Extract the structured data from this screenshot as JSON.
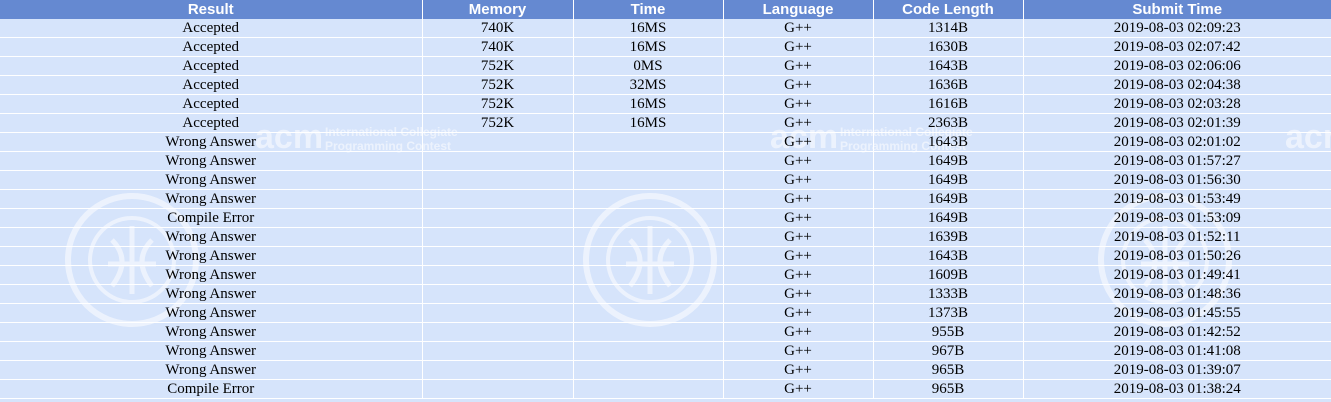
{
  "headers": [
    "Result",
    "Memory",
    "Time",
    "Language",
    "Code Length",
    "Submit Time"
  ],
  "colors": {
    "header_bg": "#6589d1",
    "row_bg": "#d6e4fb",
    "accepted": "#0000ee",
    "wrong_answer": "#ff0000",
    "compile_error": "#007f00",
    "language_link": "#0000ee"
  },
  "watermark": {
    "acm_text": "acm",
    "contest_line1": "International Collegiate",
    "contest_line2": "Programming Contest"
  },
  "rows": [
    {
      "result": "Accepted",
      "memory": "740K",
      "time": "16MS",
      "language": "G++",
      "code_length": "1314B",
      "submit_time": "2019-08-03 02:09:23"
    },
    {
      "result": "Accepted",
      "memory": "740K",
      "time": "16MS",
      "language": "G++",
      "code_length": "1630B",
      "submit_time": "2019-08-03 02:07:42"
    },
    {
      "result": "Accepted",
      "memory": "752K",
      "time": "0MS",
      "language": "G++",
      "code_length": "1643B",
      "submit_time": "2019-08-03 02:06:06"
    },
    {
      "result": "Accepted",
      "memory": "752K",
      "time": "32MS",
      "language": "G++",
      "code_length": "1636B",
      "submit_time": "2019-08-03 02:04:38"
    },
    {
      "result": "Accepted",
      "memory": "752K",
      "time": "16MS",
      "language": "G++",
      "code_length": "1616B",
      "submit_time": "2019-08-03 02:03:28"
    },
    {
      "result": "Accepted",
      "memory": "752K",
      "time": "16MS",
      "language": "G++",
      "code_length": "2363B",
      "submit_time": "2019-08-03 02:01:39"
    },
    {
      "result": "Wrong Answer",
      "memory": "",
      "time": "",
      "language": "G++",
      "code_length": "1643B",
      "submit_time": "2019-08-03 02:01:02"
    },
    {
      "result": "Wrong Answer",
      "memory": "",
      "time": "",
      "language": "G++",
      "code_length": "1649B",
      "submit_time": "2019-08-03 01:57:27"
    },
    {
      "result": "Wrong Answer",
      "memory": "",
      "time": "",
      "language": "G++",
      "code_length": "1649B",
      "submit_time": "2019-08-03 01:56:30"
    },
    {
      "result": "Wrong Answer",
      "memory": "",
      "time": "",
      "language": "G++",
      "code_length": "1649B",
      "submit_time": "2019-08-03 01:53:49"
    },
    {
      "result": "Compile Error",
      "memory": "",
      "time": "",
      "language": "G++",
      "code_length": "1649B",
      "submit_time": "2019-08-03 01:53:09"
    },
    {
      "result": "Wrong Answer",
      "memory": "",
      "time": "",
      "language": "G++",
      "code_length": "1639B",
      "submit_time": "2019-08-03 01:52:11"
    },
    {
      "result": "Wrong Answer",
      "memory": "",
      "time": "",
      "language": "G++",
      "code_length": "1643B",
      "submit_time": "2019-08-03 01:50:26"
    },
    {
      "result": "Wrong Answer",
      "memory": "",
      "time": "",
      "language": "G++",
      "code_length": "1609B",
      "submit_time": "2019-08-03 01:49:41"
    },
    {
      "result": "Wrong Answer",
      "memory": "",
      "time": "",
      "language": "G++",
      "code_length": "1333B",
      "submit_time": "2019-08-03 01:48:36"
    },
    {
      "result": "Wrong Answer",
      "memory": "",
      "time": "",
      "language": "G++",
      "code_length": "1373B",
      "submit_time": "2019-08-03 01:45:55"
    },
    {
      "result": "Wrong Answer",
      "memory": "",
      "time": "",
      "language": "G++",
      "code_length": "955B",
      "submit_time": "2019-08-03 01:42:52"
    },
    {
      "result": "Wrong Answer",
      "memory": "",
      "time": "",
      "language": "G++",
      "code_length": "967B",
      "submit_time": "2019-08-03 01:41:08"
    },
    {
      "result": "Wrong Answer",
      "memory": "",
      "time": "",
      "language": "G++",
      "code_length": "965B",
      "submit_time": "2019-08-03 01:39:07"
    },
    {
      "result": "Compile Error",
      "memory": "",
      "time": "",
      "language": "G++",
      "code_length": "965B",
      "submit_time": "2019-08-03 01:38:24"
    }
  ]
}
